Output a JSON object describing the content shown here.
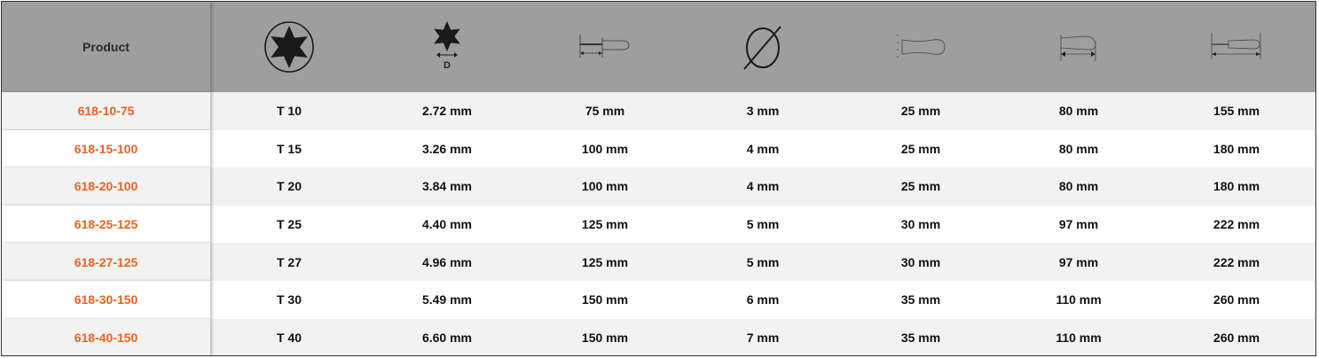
{
  "header": {
    "product_label": "Product",
    "columns": [
      {
        "icon": "torx-size-icon"
      },
      {
        "icon": "torx-diameter-icon",
        "label": "D"
      },
      {
        "icon": "blade-length-icon"
      },
      {
        "icon": "shaft-diameter-icon"
      },
      {
        "icon": "handle-diameter-icon"
      },
      {
        "icon": "handle-length-icon"
      },
      {
        "icon": "overall-length-icon"
      }
    ]
  },
  "colors": {
    "header_bg": "#9e9e9e",
    "product_link": "#e8641e",
    "row_alt": "#f2f2f2"
  },
  "rows": [
    {
      "product": "618-10-75",
      "values": [
        "T 10",
        "2.72 mm",
        "75 mm",
        "3 mm",
        "25 mm",
        "80 mm",
        "155 mm"
      ]
    },
    {
      "product": "618-15-100",
      "values": [
        "T 15",
        "3.26 mm",
        "100 mm",
        "4 mm",
        "25 mm",
        "80 mm",
        "180 mm"
      ]
    },
    {
      "product": "618-20-100",
      "values": [
        "T 20",
        "3.84 mm",
        "100 mm",
        "4 mm",
        "25 mm",
        "80 mm",
        "180 mm"
      ]
    },
    {
      "product": "618-25-125",
      "values": [
        "T 25",
        "4.40 mm",
        "125 mm",
        "5 mm",
        "30 mm",
        "97 mm",
        "222 mm"
      ]
    },
    {
      "product": "618-27-125",
      "values": [
        "T 27",
        "4.96 mm",
        "125 mm",
        "5 mm",
        "30 mm",
        "97 mm",
        "222 mm"
      ]
    },
    {
      "product": "618-30-150",
      "values": [
        "T 30",
        "5.49 mm",
        "150 mm",
        "6 mm",
        "35 mm",
        "110 mm",
        "260 mm"
      ]
    },
    {
      "product": "618-40-150",
      "values": [
        "T 40",
        "6.60 mm",
        "150 mm",
        "7 mm",
        "35 mm",
        "110 mm",
        "260 mm"
      ]
    }
  ]
}
